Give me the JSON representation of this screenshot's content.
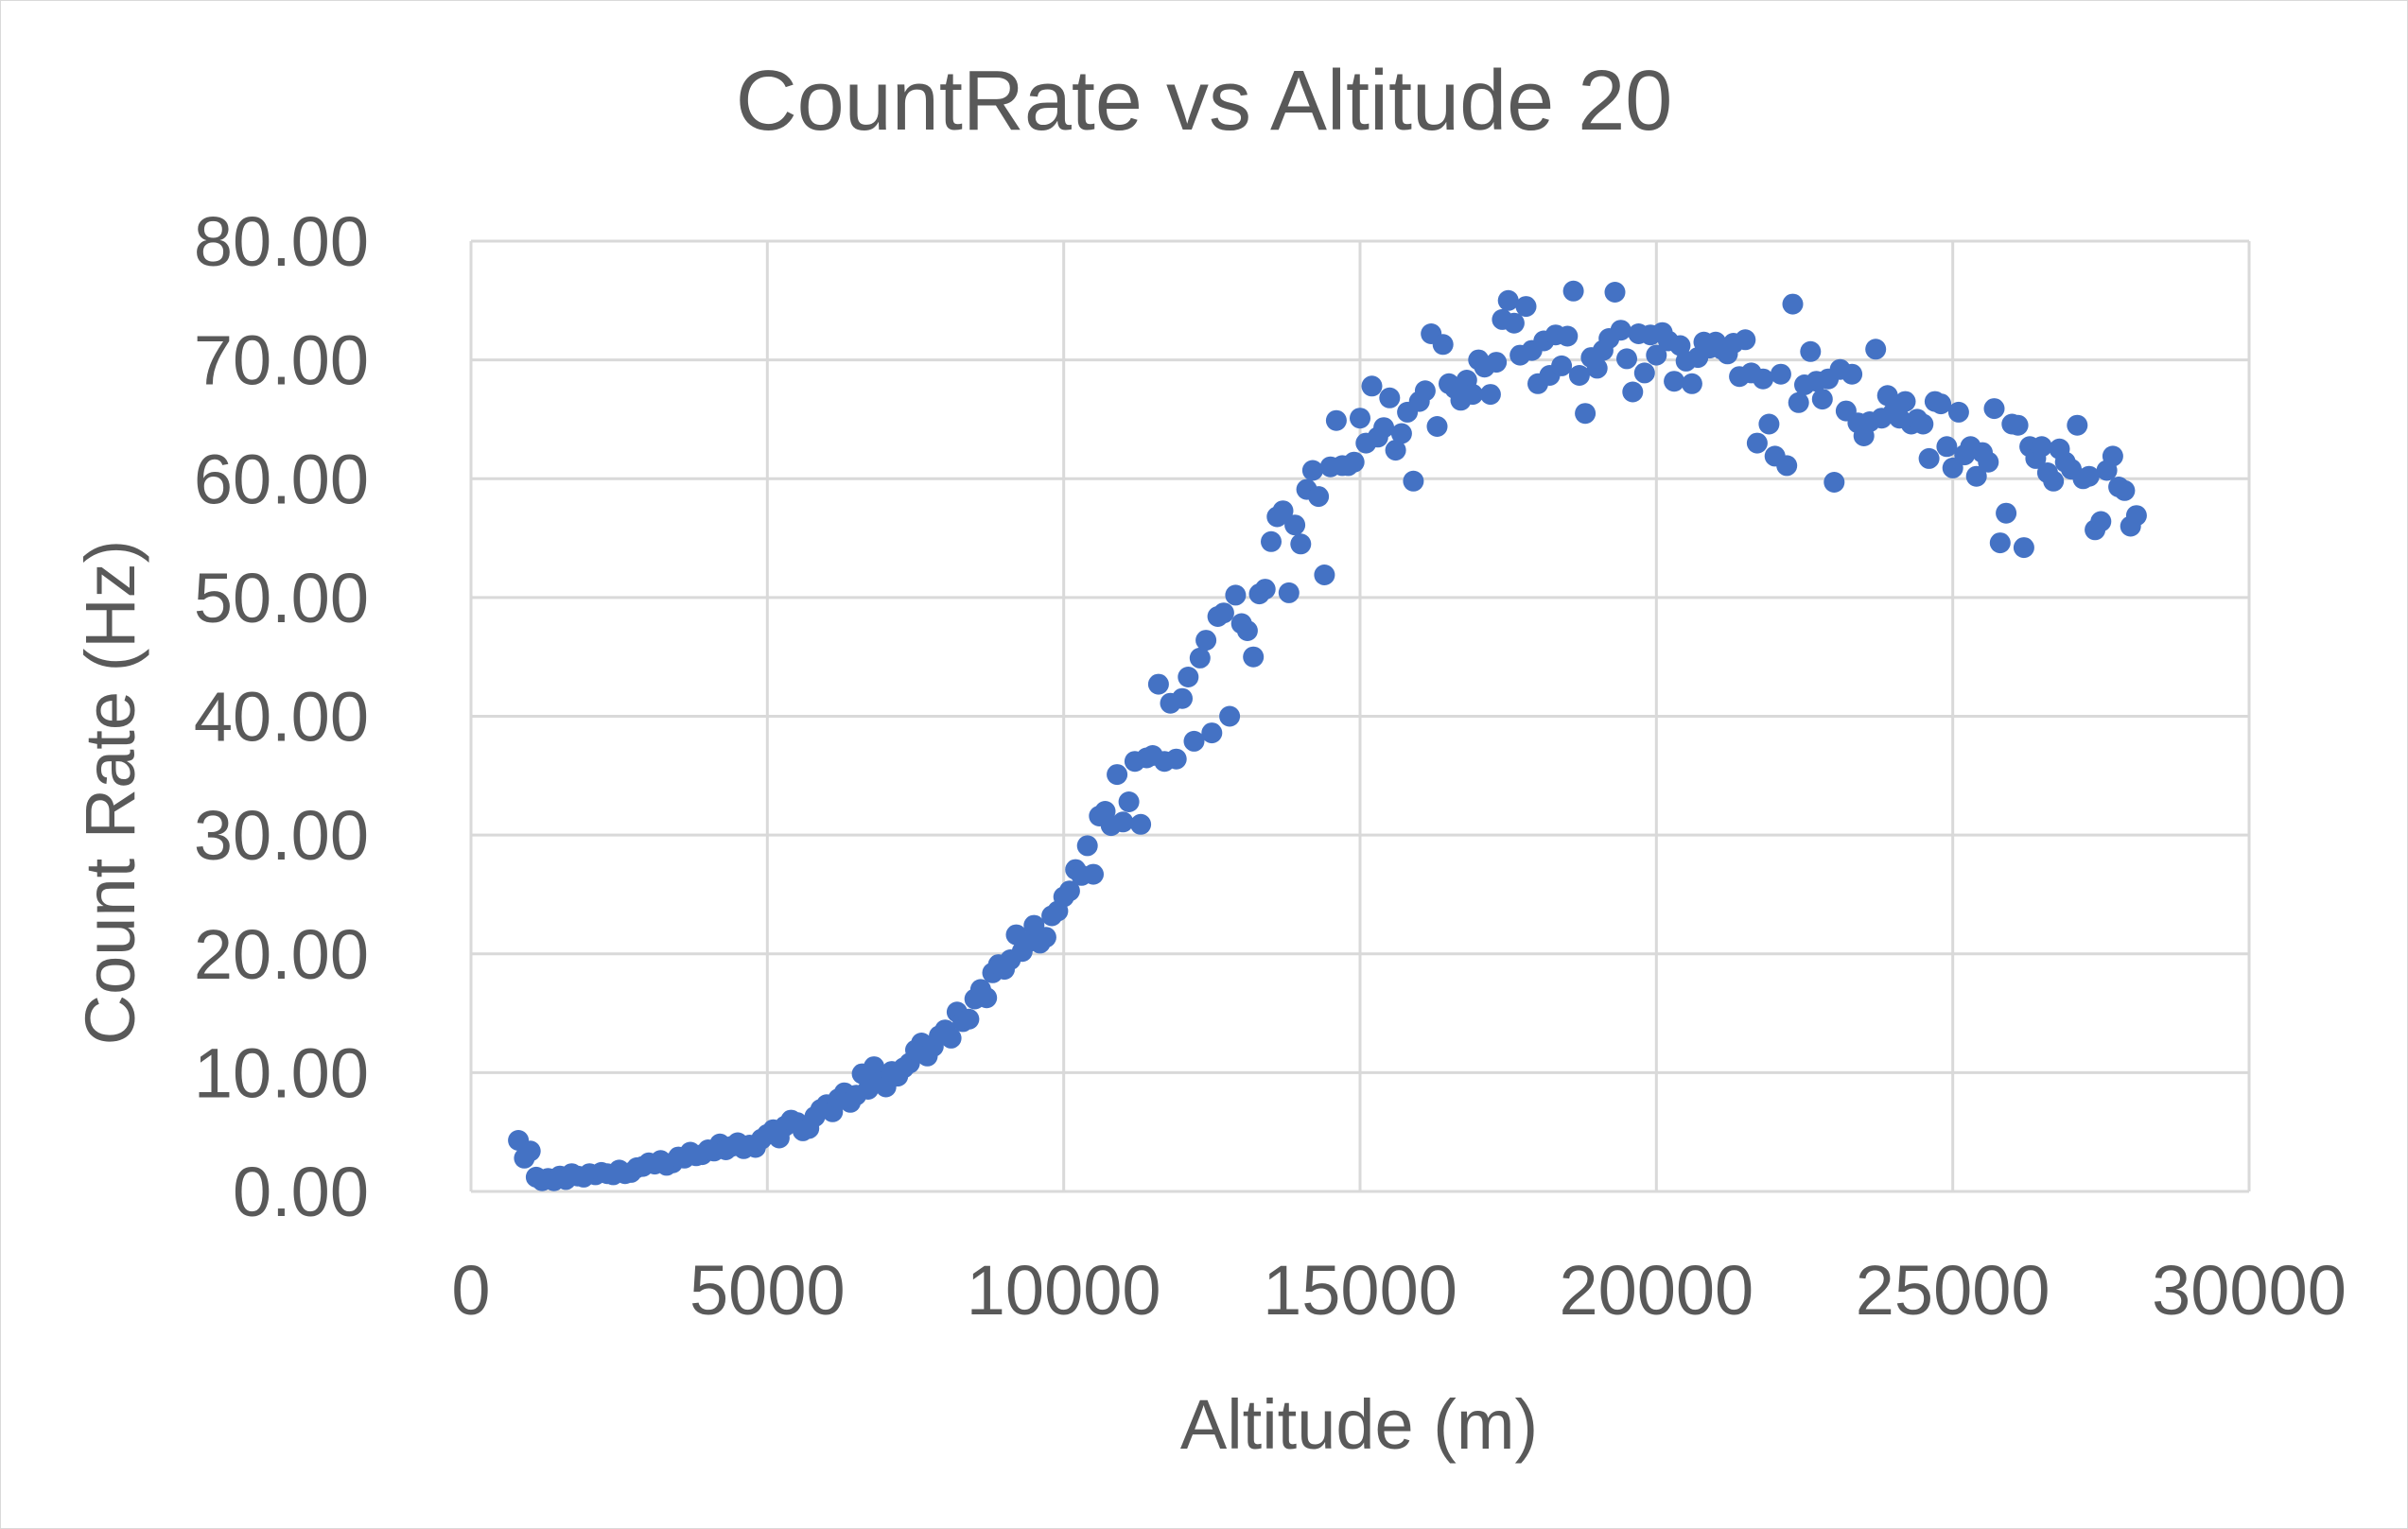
{
  "chart_data": {
    "type": "scatter",
    "title": "CountRate vs Altitude 20",
    "xlabel": "Altitude (m)",
    "ylabel": "Count Rate (Hz)",
    "xlim": [
      0,
      30000
    ],
    "ylim": [
      0,
      80
    ],
    "x_ticks": [
      "0",
      "5000",
      "10000",
      "15000",
      "20000",
      "25000",
      "30000"
    ],
    "y_ticks": [
      "0.00",
      "10.00",
      "20.00",
      "30.00",
      "40.00",
      "50.00",
      "60.00",
      "70.00",
      "80.00"
    ],
    "grid": true,
    "legend": "none",
    "marker_color": "#4472c4",
    "series": [
      {
        "points": [
          [
            800,
            4.3
          ],
          [
            900,
            2.8
          ],
          [
            1000,
            3.4
          ],
          [
            1100,
            1.2
          ],
          [
            1200,
            0.9
          ],
          [
            1300,
            1.1
          ],
          [
            1400,
            0.9
          ],
          [
            1500,
            1.3
          ],
          [
            1600,
            1.0
          ],
          [
            1700,
            1.5
          ],
          [
            1800,
            1.3
          ],
          [
            1900,
            1.2
          ],
          [
            2000,
            1.5
          ],
          [
            2100,
            1.4
          ],
          [
            2200,
            1.6
          ],
          [
            2300,
            1.5
          ],
          [
            2400,
            1.4
          ],
          [
            2500,
            1.8
          ],
          [
            2600,
            1.5
          ],
          [
            2700,
            1.6
          ],
          [
            2800,
            2.0
          ],
          [
            2900,
            2.1
          ],
          [
            3000,
            2.4
          ],
          [
            3100,
            2.3
          ],
          [
            3200,
            2.6
          ],
          [
            3300,
            2.2
          ],
          [
            3400,
            2.4
          ],
          [
            3500,
            2.9
          ],
          [
            3600,
            2.8
          ],
          [
            3700,
            3.3
          ],
          [
            3800,
            3.0
          ],
          [
            3900,
            3.1
          ],
          [
            4000,
            3.5
          ],
          [
            4100,
            3.4
          ],
          [
            4200,
            4.0
          ],
          [
            4300,
            3.5
          ],
          [
            4400,
            3.8
          ],
          [
            4500,
            4.1
          ],
          [
            4600,
            3.6
          ],
          [
            4700,
            3.9
          ],
          [
            4800,
            3.7
          ],
          [
            4900,
            4.4
          ],
          [
            5000,
            4.8
          ],
          [
            5100,
            5.2
          ],
          [
            5200,
            4.5
          ],
          [
            5300,
            5.5
          ],
          [
            5400,
            6.0
          ],
          [
            5500,
            5.8
          ],
          [
            5600,
            5.1
          ],
          [
            5700,
            5.3
          ],
          [
            5800,
            6.3
          ],
          [
            5900,
            6.9
          ],
          [
            6000,
            7.3
          ],
          [
            6100,
            6.7
          ],
          [
            6200,
            7.8
          ],
          [
            6300,
            8.3
          ],
          [
            6400,
            7.5
          ],
          [
            6500,
            8.1
          ],
          [
            6600,
            9.9
          ],
          [
            6700,
            8.6
          ],
          [
            6800,
            10.5
          ],
          [
            6900,
            9.2
          ],
          [
            7000,
            8.8
          ],
          [
            7100,
            10.1
          ],
          [
            7200,
            9.7
          ],
          [
            7300,
            10.4
          ],
          [
            7400,
            10.8
          ],
          [
            7500,
            11.9
          ],
          [
            7600,
            12.5
          ],
          [
            7700,
            11.4
          ],
          [
            7800,
            12.2
          ],
          [
            7900,
            13.1
          ],
          [
            8000,
            13.6
          ],
          [
            8100,
            12.9
          ],
          [
            8200,
            15.1
          ],
          [
            8300,
            14.3
          ],
          [
            8400,
            14.5
          ],
          [
            8500,
            16.2
          ],
          [
            8600,
            17.0
          ],
          [
            8700,
            16.3
          ],
          [
            8800,
            18.4
          ],
          [
            8900,
            19.1
          ],
          [
            9000,
            18.7
          ],
          [
            9100,
            19.5
          ],
          [
            9200,
            21.6
          ],
          [
            9300,
            20.2
          ],
          [
            9400,
            21.0
          ],
          [
            9500,
            22.4
          ],
          [
            9600,
            20.9
          ],
          [
            9700,
            21.4
          ],
          [
            9800,
            23.2
          ],
          [
            9900,
            23.6
          ],
          [
            10000,
            24.8
          ],
          [
            10100,
            25.3
          ],
          [
            10200,
            27.1
          ],
          [
            10300,
            26.6
          ],
          [
            10400,
            29.1
          ],
          [
            10500,
            26.7
          ],
          [
            10600,
            31.6
          ],
          [
            10700,
            32.0
          ],
          [
            10800,
            30.8
          ],
          [
            10900,
            35.1
          ],
          [
            11000,
            31.1
          ],
          [
            11100,
            32.8
          ],
          [
            11200,
            36.2
          ],
          [
            11300,
            30.9
          ],
          [
            11400,
            36.5
          ],
          [
            11500,
            36.7
          ],
          [
            11600,
            42.7
          ],
          [
            11700,
            36.2
          ],
          [
            11800,
            41.1
          ],
          [
            11900,
            36.4
          ],
          [
            12000,
            41.5
          ],
          [
            12100,
            43.3
          ],
          [
            12200,
            37.9
          ],
          [
            12300,
            44.9
          ],
          [
            12400,
            46.4
          ],
          [
            12500,
            38.6
          ],
          [
            12600,
            48.4
          ],
          [
            12700,
            48.7
          ],
          [
            12800,
            40.0
          ],
          [
            12900,
            50.2
          ],
          [
            13000,
            47.8
          ],
          [
            13100,
            47.2
          ],
          [
            13200,
            45.0
          ],
          [
            13300,
            50.3
          ],
          [
            13400,
            50.7
          ],
          [
            13500,
            54.7
          ],
          [
            13600,
            56.8
          ],
          [
            13700,
            57.3
          ],
          [
            13800,
            50.4
          ],
          [
            13900,
            56.1
          ],
          [
            14000,
            54.5
          ],
          [
            14100,
            59.1
          ],
          [
            14200,
            60.7
          ],
          [
            14300,
            58.5
          ],
          [
            14400,
            51.9
          ],
          [
            14500,
            61.0
          ],
          [
            14600,
            64.9
          ],
          [
            14700,
            61.1
          ],
          [
            14800,
            61.1
          ],
          [
            14900,
            61.4
          ],
          [
            15000,
            65.1
          ],
          [
            15100,
            63.0
          ],
          [
            15200,
            67.8
          ],
          [
            15300,
            63.5
          ],
          [
            15400,
            64.3
          ],
          [
            15500,
            66.8
          ],
          [
            15600,
            62.4
          ],
          [
            15700,
            63.8
          ],
          [
            15800,
            65.6
          ],
          [
            15900,
            59.8
          ],
          [
            16000,
            66.5
          ],
          [
            16100,
            67.4
          ],
          [
            16200,
            72.2
          ],
          [
            16300,
            64.4
          ],
          [
            16400,
            71.3
          ],
          [
            16500,
            68.0
          ],
          [
            16600,
            67.6
          ],
          [
            16700,
            66.6
          ],
          [
            16800,
            68.3
          ],
          [
            16900,
            67.1
          ],
          [
            17000,
            70.0
          ],
          [
            17100,
            69.4
          ],
          [
            17200,
            67.1
          ],
          [
            17300,
            69.8
          ],
          [
            17400,
            73.4
          ],
          [
            17500,
            75.0
          ],
          [
            17600,
            73.1
          ],
          [
            17700,
            70.4
          ],
          [
            17800,
            74.5
          ],
          [
            17900,
            70.8
          ],
          [
            18000,
            68.0
          ],
          [
            18100,
            71.6
          ],
          [
            18200,
            68.7
          ],
          [
            18300,
            72.1
          ],
          [
            18400,
            69.5
          ],
          [
            18500,
            72.0
          ],
          [
            18600,
            75.8
          ],
          [
            18700,
            68.7
          ],
          [
            18800,
            65.5
          ],
          [
            18900,
            70.2
          ],
          [
            19000,
            69.3
          ],
          [
            19100,
            70.8
          ],
          [
            19200,
            71.8
          ],
          [
            19300,
            75.7
          ],
          [
            19400,
            72.5
          ],
          [
            19500,
            70.1
          ],
          [
            19600,
            67.3
          ],
          [
            19700,
            72.2
          ],
          [
            19800,
            68.9
          ],
          [
            19900,
            72.1
          ],
          [
            20000,
            70.4
          ],
          [
            20100,
            72.3
          ],
          [
            20200,
            71.6
          ],
          [
            20300,
            68.2
          ],
          [
            20400,
            71.2
          ],
          [
            20500,
            69.9
          ],
          [
            20600,
            68.0
          ],
          [
            20700,
            70.2
          ],
          [
            20800,
            71.5
          ],
          [
            20900,
            71.0
          ],
          [
            21000,
            71.5
          ],
          [
            21100,
            70.9
          ],
          [
            21200,
            70.5
          ],
          [
            21300,
            71.4
          ],
          [
            21400,
            68.6
          ],
          [
            21500,
            71.7
          ],
          [
            21600,
            68.9
          ],
          [
            21700,
            63.0
          ],
          [
            21800,
            68.4
          ],
          [
            21900,
            64.6
          ],
          [
            22000,
            61.9
          ],
          [
            22100,
            68.8
          ],
          [
            22200,
            61.1
          ],
          [
            22300,
            74.7
          ],
          [
            22400,
            66.4
          ],
          [
            22500,
            67.9
          ],
          [
            22600,
            70.7
          ],
          [
            22700,
            68.2
          ],
          [
            22800,
            66.7
          ],
          [
            22900,
            68.4
          ],
          [
            23000,
            59.7
          ],
          [
            23100,
            69.2
          ],
          [
            23200,
            65.7
          ],
          [
            23300,
            68.8
          ],
          [
            23400,
            64.7
          ],
          [
            23500,
            63.6
          ],
          [
            23600,
            64.8
          ],
          [
            23700,
            70.9
          ],
          [
            23800,
            65.1
          ],
          [
            23900,
            67.0
          ],
          [
            24000,
            65.6
          ],
          [
            24100,
            65.1
          ],
          [
            24200,
            66.5
          ],
          [
            24300,
            64.6
          ],
          [
            24400,
            65.0
          ],
          [
            24500,
            64.6
          ],
          [
            24600,
            61.7
          ],
          [
            24700,
            66.5
          ],
          [
            24800,
            66.3
          ],
          [
            24900,
            62.7
          ],
          [
            25000,
            60.9
          ],
          [
            25100,
            65.6
          ],
          [
            25200,
            62.0
          ],
          [
            25300,
            62.7
          ],
          [
            25400,
            60.2
          ],
          [
            25500,
            62.2
          ],
          [
            25600,
            61.4
          ],
          [
            25700,
            65.9
          ],
          [
            25800,
            54.6
          ],
          [
            25900,
            57.1
          ],
          [
            26000,
            64.6
          ],
          [
            26100,
            64.5
          ],
          [
            26200,
            54.2
          ],
          [
            26300,
            62.7
          ],
          [
            26400,
            61.7
          ],
          [
            26500,
            62.7
          ],
          [
            26600,
            60.5
          ],
          [
            26700,
            59.8
          ],
          [
            26800,
            62.5
          ],
          [
            26900,
            61.4
          ],
          [
            27000,
            60.8
          ],
          [
            27100,
            64.5
          ],
          [
            27200,
            60.0
          ],
          [
            27300,
            60.2
          ],
          [
            27400,
            55.7
          ],
          [
            27500,
            56.4
          ],
          [
            27600,
            60.7
          ],
          [
            27700,
            61.9
          ],
          [
            27800,
            59.3
          ],
          [
            27900,
            59.0
          ],
          [
            28000,
            56.0
          ],
          [
            28100,
            56.9
          ]
        ]
      }
    ]
  }
}
